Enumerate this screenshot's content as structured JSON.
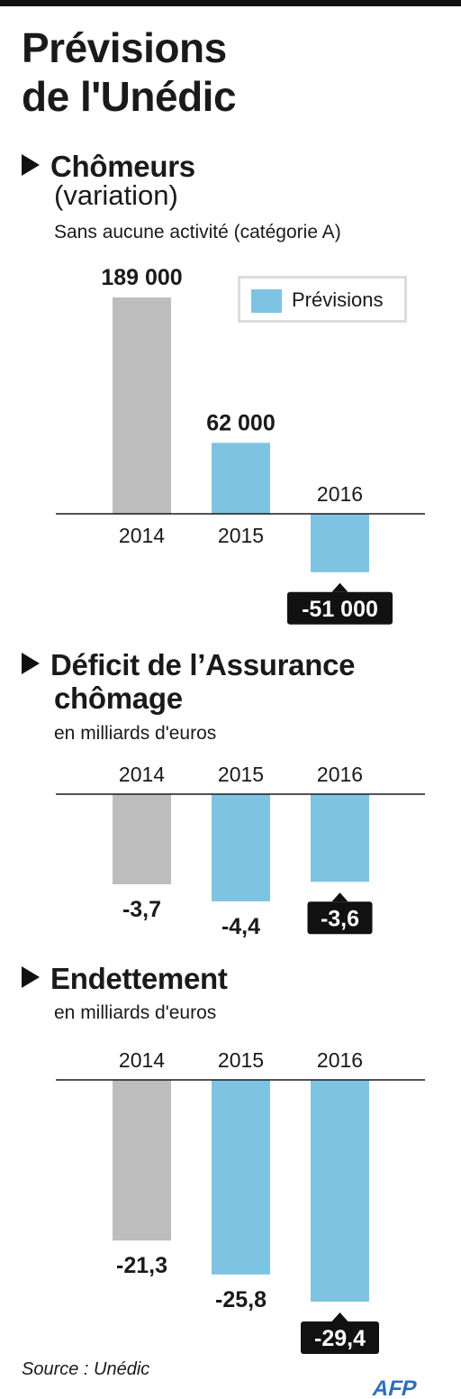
{
  "title": {
    "line1": "Prévisions",
    "line2": "de l'Unédic"
  },
  "colors": {
    "actual": "#bdbdbd",
    "forecast": "#7ec4e2",
    "callout_bg": "#111111",
    "callout_text": "#ffffff",
    "logo": "#2f6fba"
  },
  "legend": {
    "label": "Prévisions",
    "color": "#7ec4e2"
  },
  "sections": [
    {
      "heading": "Chômeurs",
      "heading_line2": "",
      "heading_extra": "(variation)",
      "subtitle": "Sans aucune activité (catégorie A)"
    },
    {
      "heading": "Déficit de l’Assurance",
      "heading_line2": "chômage",
      "heading_extra": "",
      "subtitle": "en milliards d'euros"
    },
    {
      "heading": "Endettement",
      "heading_line2": "",
      "heading_extra": "",
      "subtitle": "en milliards d'euros"
    }
  ],
  "chart_data": [
    {
      "type": "bar",
      "title": "Chômeurs",
      "categories": [
        "2014",
        "2015",
        "2016"
      ],
      "values": [
        189000,
        62000,
        -51000
      ],
      "value_labels": [
        "189 000",
        "62 000",
        "-51 000"
      ],
      "forecast": [
        false,
        true,
        true
      ],
      "highlight_index": 2,
      "unit": ""
    },
    {
      "type": "bar",
      "title": "Déficit de l’Assurance chômage",
      "categories": [
        "2014",
        "2015",
        "2016"
      ],
      "values": [
        -3.7,
        -4.4,
        -3.6
      ],
      "value_labels": [
        "-3,7",
        "-4,4",
        "-3,6"
      ],
      "forecast": [
        false,
        true,
        true
      ],
      "highlight_index": 2,
      "unit": "milliards d'euros"
    },
    {
      "type": "bar",
      "title": "Endettement",
      "categories": [
        "2014",
        "2015",
        "2016"
      ],
      "values": [
        -21.3,
        -25.8,
        -29.4
      ],
      "value_labels": [
        "-21,3",
        "-25,8",
        "-29,4"
      ],
      "forecast": [
        false,
        true,
        true
      ],
      "highlight_index": 2,
      "unit": "milliards d'euros"
    }
  ],
  "source": "Source : Unédic",
  "logo": "AFP"
}
